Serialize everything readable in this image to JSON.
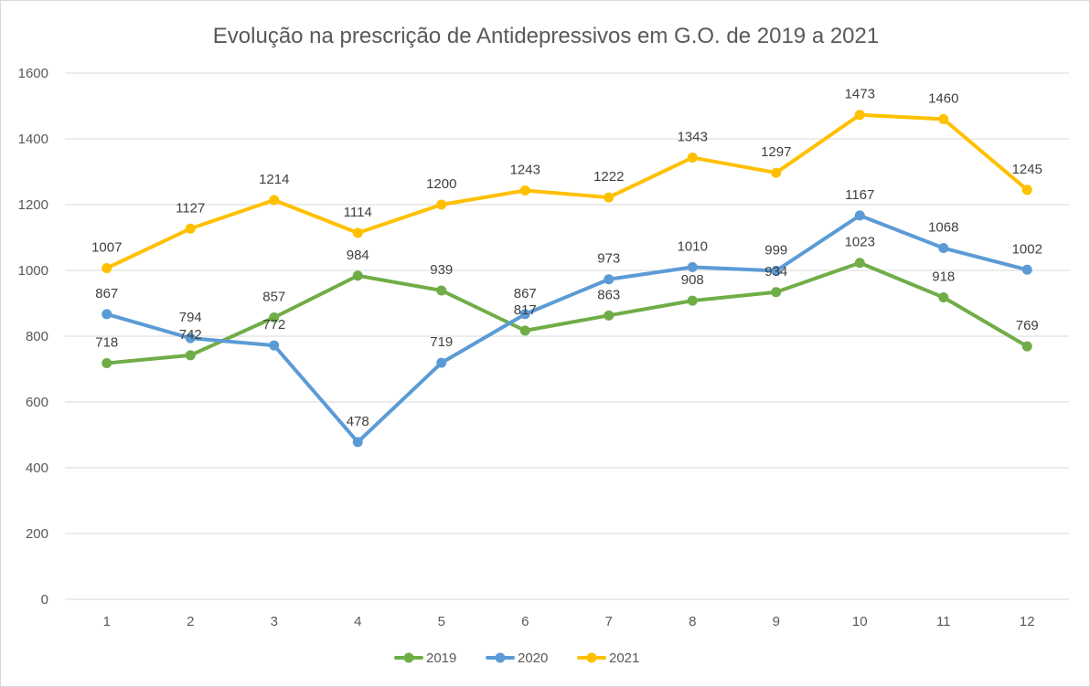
{
  "chart_data": {
    "type": "line",
    "title": "Evolução na prescrição de Antidepressivos em G.O. de 2019 a 2021",
    "xlabel": "",
    "ylabel": "",
    "categories": [
      "1",
      "2",
      "3",
      "4",
      "5",
      "6",
      "7",
      "8",
      "9",
      "10",
      "11",
      "12"
    ],
    "ylim": [
      0,
      1600
    ],
    "yticks": [
      0,
      200,
      400,
      600,
      800,
      1000,
      1200,
      1400,
      1600
    ],
    "grid": true,
    "legend_position": "bottom",
    "series": [
      {
        "name": "2019",
        "color": "#70ad47",
        "values": [
          718,
          742,
          857,
          984,
          939,
          817,
          863,
          908,
          934,
          1023,
          918,
          769
        ]
      },
      {
        "name": "2020",
        "color": "#5b9bd5",
        "values": [
          867,
          794,
          772,
          478,
          719,
          867,
          973,
          1010,
          999,
          1167,
          1068,
          1002
        ]
      },
      {
        "name": "2021",
        "color": "#ffc000",
        "values": [
          1007,
          1127,
          1214,
          1114,
          1200,
          1243,
          1222,
          1343,
          1297,
          1473,
          1460,
          1245
        ]
      }
    ]
  }
}
